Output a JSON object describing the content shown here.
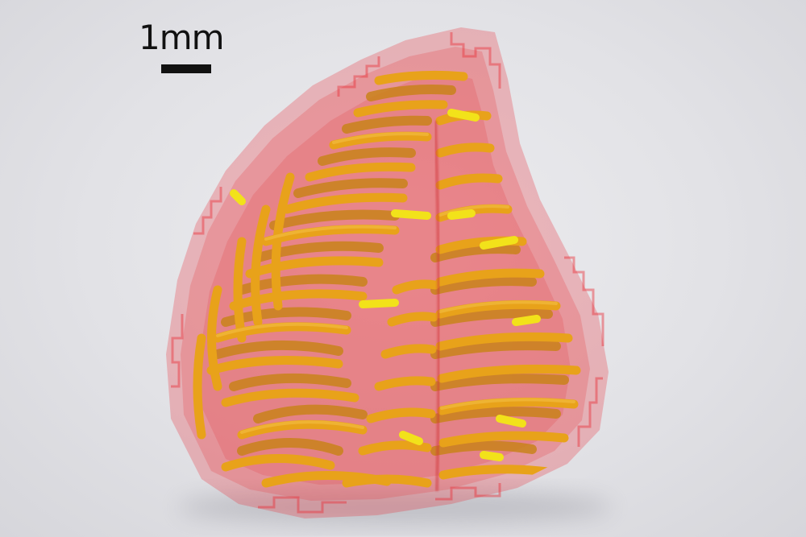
{
  "scale": {
    "label": "1mm"
  },
  "colors": {
    "background": "#e4e4e8",
    "hull": "#e8303a",
    "fiber": "#e8a21a",
    "fiber_highlight": "#f2e21a",
    "scale_bar": "#111111"
  },
  "icons": [
    "scale-bar"
  ]
}
